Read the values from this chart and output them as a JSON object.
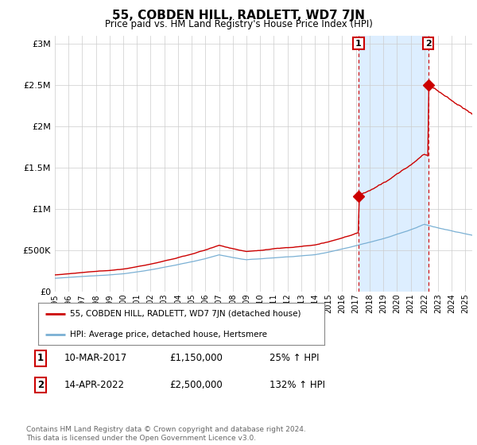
{
  "title": "55, COBDEN HILL, RADLETT, WD7 7JN",
  "subtitle": "Price paid vs. HM Land Registry's House Price Index (HPI)",
  "background_color": "#ffffff",
  "plot_bg_color": "#ffffff",
  "shade_color": "#ddeeff",
  "grid_color": "#cccccc",
  "ylabel_ticks": [
    "£0",
    "£500K",
    "£1M",
    "£1.5M",
    "£2M",
    "£2.5M",
    "£3M"
  ],
  "ytick_values": [
    0,
    500000,
    1000000,
    1500000,
    2000000,
    2500000,
    3000000
  ],
  "ylim": [
    0,
    3100000
  ],
  "xlim_start": 1995.0,
  "xlim_end": 2025.5,
  "hpi_color": "#7ab0d4",
  "price_color": "#cc0000",
  "marker1_year": 2017.19,
  "marker1_price": 1150000,
  "marker1_label": "1",
  "marker2_year": 2022.29,
  "marker2_price": 2500000,
  "marker2_label": "2",
  "legend_line1": "55, COBDEN HILL, RADLETT, WD7 7JN (detached house)",
  "legend_line2": "HPI: Average price, detached house, Hertsmere",
  "table_row1_num": "1",
  "table_row1_date": "10-MAR-2017",
  "table_row1_price": "£1,150,000",
  "table_row1_hpi": "25% ↑ HPI",
  "table_row2_num": "2",
  "table_row2_date": "14-APR-2022",
  "table_row2_price": "£2,500,000",
  "table_row2_hpi": "132% ↑ HPI",
  "footnote": "Contains HM Land Registry data © Crown copyright and database right 2024.\nThis data is licensed under the Open Government Licence v3.0.",
  "xtick_years": [
    1995,
    1996,
    1997,
    1998,
    1999,
    2000,
    2001,
    2002,
    2003,
    2004,
    2005,
    2006,
    2007,
    2008,
    2009,
    2010,
    2011,
    2012,
    2013,
    2014,
    2015,
    2016,
    2017,
    2018,
    2019,
    2020,
    2021,
    2022,
    2023,
    2024,
    2025
  ]
}
